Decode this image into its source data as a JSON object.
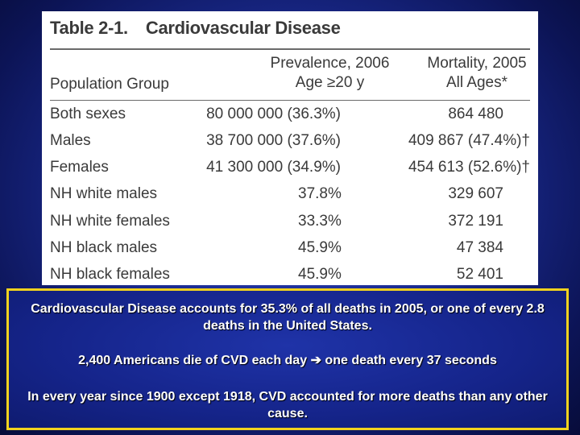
{
  "table": {
    "title_label": "Table 2-1.",
    "title_text": "Cardiovascular Disease",
    "header": {
      "group": "Population Group",
      "prevalence_line1": "Prevalence, 2006",
      "prevalence_line2": "Age ≥20 y",
      "mortality_line1": "Mortality, 2005",
      "mortality_line2": "All Ages*"
    },
    "rows": [
      {
        "group": "Both sexes",
        "prevalence": "80 000 000 (36.3%)",
        "mortality": "864 480"
      },
      {
        "group": "Males",
        "prevalence": "38 700 000 (37.6%)",
        "mortality": "409 867 (47.4%)†"
      },
      {
        "group": "Females",
        "prevalence": "41 300 000 (34.9%)",
        "mortality": "454 613 (52.6%)†"
      },
      {
        "group": "NH white males",
        "prevalence": "37.8%",
        "mortality": "329 607"
      },
      {
        "group": "NH white females",
        "prevalence": "33.3%",
        "mortality": "372 191"
      },
      {
        "group": "NH black males",
        "prevalence": "45.9%",
        "mortality": "47 384"
      },
      {
        "group": "NH black females",
        "prevalence": "45.9%",
        "mortality": "52 401"
      }
    ]
  },
  "notes": {
    "p1": "Cardiovascular Disease accounts for 35.3% of all deaths in 2005, or one of every 2.8 deaths in the United States.",
    "p2_before": "2,400 Americans die of CVD each day",
    "p2_arrow": "➔",
    "p2_after": "one death every 37 seconds",
    "p3": "In every year since 1900 except 1918, CVD accounted for more deaths than any other cause."
  },
  "colors": {
    "accent_border": "#f2d21e",
    "background": "#1a2a8e"
  }
}
